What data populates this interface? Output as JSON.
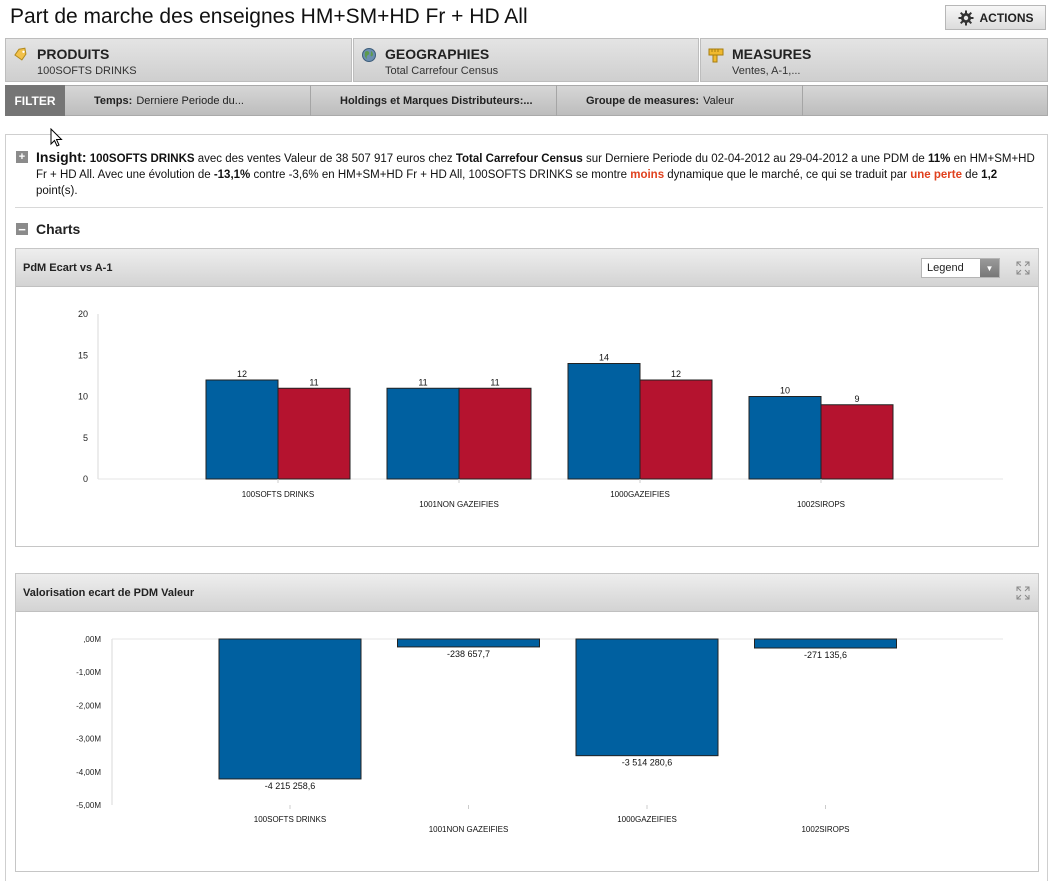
{
  "page": {
    "title": "Part de marche des enseignes HM+SM+HD Fr + HD All",
    "actions_label": "ACTIONS"
  },
  "dimensions": [
    {
      "title": "PRODUITS",
      "subtitle": "100SOFTS DRINKS",
      "icon": "tag-icon"
    },
    {
      "title": "GEOGRAPHIES",
      "subtitle": "Total Carrefour Census",
      "icon": "globe-icon"
    },
    {
      "title": "MEASURES",
      "subtitle": "Ventes, A-1,...",
      "icon": "measure-icon"
    }
  ],
  "filter": {
    "label": "FILTER",
    "items": [
      {
        "key": "Temps:",
        "value": "Derniere Periode du..."
      },
      {
        "key": "Holdings et Marques Distributeurs:...",
        "value": ""
      },
      {
        "key": "Groupe de measures:",
        "value": "Valeur"
      }
    ]
  },
  "insight": {
    "toggle": "+",
    "label": "Insight:",
    "p1": "100SOFTS DRINKS",
    "p2": " avec des ventes Valeur de 38 507 917 euros chez ",
    "p3": "Total Carrefour Census",
    "p4": " sur Derniere Periode du 02-04-2012 au 29-04-2012 a une PDM de ",
    "p5": "11%",
    "p6": "  en HM+SM+HD Fr + HD All. Avec une évolution de ",
    "p7": "-13,1%",
    "p8": "  contre -3,6% en HM+SM+HD Fr + HD All, 100SOFTS DRINKS se montre ",
    "p9": "moins",
    "p10": " dynamique que le marché, ce qui se traduit par  ",
    "p11": "une perte",
    "p12": " de ",
    "p13": "1,2",
    "p14": " point(s)."
  },
  "charts_section": {
    "toggle": "−",
    "title": "Charts"
  },
  "panels": {
    "panel1": {
      "title": "PdM Ecart vs A-1",
      "legend_label": "Legend"
    },
    "panel2": {
      "title": "Valorisation ecart de PDM Valeur"
    }
  },
  "colors": {
    "blue": "#0060a0",
    "red": "#b5132f",
    "accent_red": "#e0411e"
  },
  "chart_data": [
    {
      "type": "bar",
      "title": "PdM Ecart vs A-1",
      "categories": [
        "100SOFTS DRINKS",
        "1001NON GAZEIFIES",
        "1000GAZEIFIES",
        "1002SIROPS"
      ],
      "series": [
        {
          "values": [
            12,
            11,
            14,
            10
          ],
          "value_labels": [
            "12",
            "11",
            "14",
            "10"
          ],
          "color": "#0060a0"
        },
        {
          "values": [
            11,
            11,
            12,
            9
          ],
          "value_labels": [
            "11",
            "11",
            "12",
            "9"
          ],
          "color": "#b5132f"
        }
      ],
      "ylim": [
        0,
        20
      ],
      "yticks": [
        "0",
        "5",
        "10",
        "15",
        "20"
      ],
      "yticks_values": [
        0,
        5,
        10,
        15,
        20
      ],
      "grid": false,
      "legend": "none"
    },
    {
      "type": "bar",
      "title": "Valorisation ecart de PDM Valeur",
      "categories": [
        "100SOFTS DRINKS",
        "1001NON GAZEIFIES",
        "1000GAZEIFIES",
        "1002SIROPS"
      ],
      "series": [
        {
          "values": [
            -4215258.6,
            -238657.7,
            -3514280.6,
            -271135.6
          ],
          "value_labels": [
            "-4 215 258,6",
            "-238 657,7",
            "-3 514 280,6",
            "-271 135,6"
          ],
          "color": "#0060a0"
        }
      ],
      "ylim": [
        -5000000,
        0
      ],
      "yticks": [
        ",00M",
        "-1,00M",
        "-2,00M",
        "-3,00M",
        "-4,00M",
        "-5,00M"
      ],
      "yticks_values": [
        0,
        -1000000,
        -2000000,
        -3000000,
        -4000000,
        -5000000
      ],
      "grid": false,
      "legend": "none"
    }
  ]
}
